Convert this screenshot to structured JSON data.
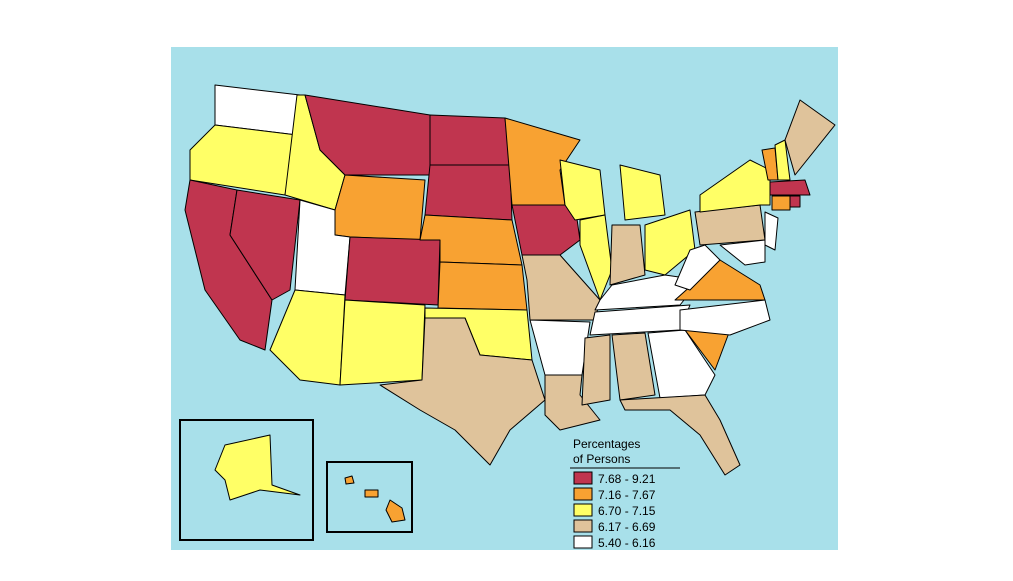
{
  "legend": {
    "title": [
      "Percentages",
      "of Persons"
    ],
    "items": [
      {
        "label": "7.68 - 9.21",
        "color": "#c0354f"
      },
      {
        "label": "7.16 - 7.67",
        "color": "#f8a232"
      },
      {
        "label": "6.70 - 7.15",
        "color": "#ffff66"
      },
      {
        "label": "6.17 - 6.69",
        "color": "#dfc39b"
      },
      {
        "label": "5.40 - 6.16",
        "color": "#ffffff"
      }
    ]
  }
}
